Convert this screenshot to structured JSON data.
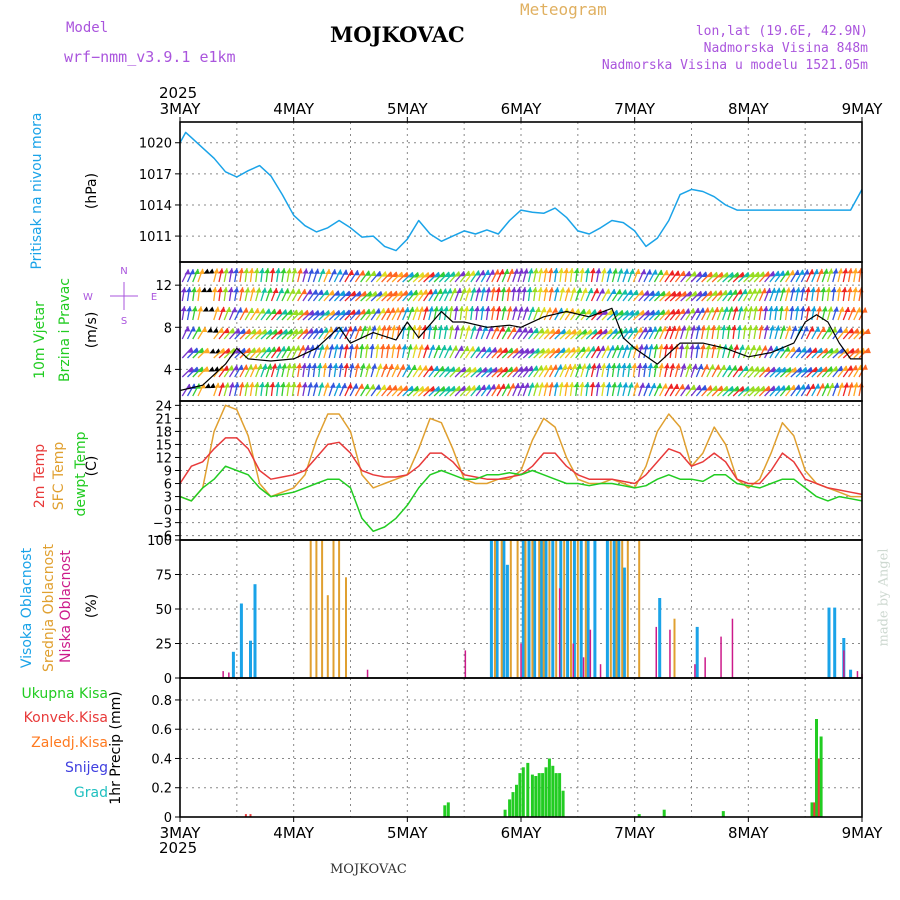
{
  "header": {
    "title": "MOJKOVAC",
    "model_label": "Model",
    "model_name": "wrf−nmm_v3.9.1 e1km",
    "meteogram": "Meteogram",
    "lonlat": "lon,lat (19.6E, 42.9N)",
    "elevation": "Nadmorska Visina 848m",
    "model_elevation": "Nadmorska Visina u modelu 1521.05m",
    "year_top": "2025",
    "year_bottom": "2025",
    "footer": "MOJKOVAC",
    "signature": "made by Angel"
  },
  "colors": {
    "pressure": "#1aa3e8",
    "wind_speed": "#000000",
    "temp2m": "#e83a3a",
    "sfc_temp": "#e0a030",
    "dewpoint": "#22cc22",
    "cloud_high": "#1aa3e8",
    "cloud_mid": "#e0a030",
    "cloud_low": "#cc1a8a",
    "precip_total": "#22cc22",
    "precip_conv": "#e83a3a",
    "precip_frz": "#ff7a20",
    "snow": "#4040e0",
    "graupel": "#20c0c0",
    "violet_text": "#aa55dd"
  },
  "x_axis": {
    "start": "2025-05-03",
    "end": "2025-05-09",
    "ticks": [
      "3MAY",
      "4MAY",
      "5MAY",
      "6MAY",
      "7MAY",
      "8MAY",
      "9MAY"
    ]
  },
  "panels": {
    "pressure": {
      "label": "Pritisak na nivou mora",
      "unit": "(hPa)",
      "ticks": [
        "1020",
        "1017",
        "1014",
        "1011"
      ]
    },
    "wind": {
      "label1": "10m Vjetar",
      "label2": "Brzina i Pravac",
      "unit": "(m/s)",
      "ticks": [
        "12",
        "8",
        "4"
      ],
      "compass": {
        "n": "N",
        "s": "S",
        "e": "E",
        "w": "W"
      }
    },
    "temp": {
      "label1": "2m Temp",
      "label2": "SFC Temp",
      "label3": "dewpt Temp",
      "unit": "(C)",
      "ticks": [
        "24",
        "21",
        "18",
        "15",
        "12",
        "9",
        "6",
        "3",
        "0",
        "−3",
        "−6"
      ]
    },
    "cloud": {
      "label1": "Visoka Oblacnost",
      "label2": "Srednja Oblacnost",
      "label3": "Niska Oblacnost",
      "unit": "(%)",
      "ticks": [
        "100",
        "75",
        "50",
        "25",
        "0"
      ]
    },
    "precip": {
      "legend": [
        "Ukupna Kisa",
        "Konvek.Kisa",
        "Zaledj.Kisa",
        "Snijeg",
        "Grad"
      ],
      "ylabel": "1hr Precip (mm)",
      "ticks": [
        "0.8",
        "0.6",
        "0.4",
        "0.2",
        "0"
      ]
    }
  },
  "chart_data": [
    {
      "type": "line",
      "name": "pressure",
      "ylim": [
        1008.5,
        1022
      ],
      "x_days": [
        0,
        0.05,
        0.1,
        0.2,
        0.3,
        0.4,
        0.5,
        0.6,
        0.7,
        0.8,
        0.9,
        1.0,
        1.1,
        1.2,
        1.3,
        1.4,
        1.5,
        1.6,
        1.7,
        1.8,
        1.9,
        2.0,
        2.1,
        2.2,
        2.3,
        2.4,
        2.5,
        2.6,
        2.7,
        2.8,
        2.9,
        3.0,
        3.1,
        3.2,
        3.3,
        3.4,
        3.5,
        3.6,
        3.7,
        3.8,
        3.9,
        4.0,
        4.1,
        4.2,
        4.3,
        4.4,
        4.5,
        4.6,
        4.7,
        4.8,
        4.9,
        5.0,
        5.1,
        5.2,
        5.3,
        5.4,
        5.5,
        5.6,
        5.7,
        5.8,
        5.9,
        6.0
      ],
      "values": [
        1020,
        1021,
        1020.5,
        1019.5,
        1018.5,
        1017.2,
        1016.7,
        1017.3,
        1017.8,
        1016.8,
        1015,
        1013,
        1012,
        1011.4,
        1011.8,
        1012.5,
        1011.8,
        1010.9,
        1011,
        1010,
        1009.6,
        1010.7,
        1012.5,
        1011.2,
        1010.5,
        1011,
        1011.5,
        1011.2,
        1011.6,
        1011.2,
        1012.5,
        1013.5,
        1013.3,
        1013.2,
        1013.7,
        1012.8,
        1011.5,
        1011.2,
        1011.8,
        1012.5,
        1012.3,
        1011.5,
        1010,
        1010.8,
        1012.5,
        1015,
        1015.5,
        1015.3,
        1014.8,
        1014,
        1013.5,
        1013.5,
        1013.5,
        1013.5,
        1013.5,
        1013.5,
        1013.5,
        1013.5,
        1013.5,
        1013.5,
        1013.5,
        1015.5
      ]
    },
    {
      "type": "line",
      "name": "wind_speed",
      "ylim": [
        1,
        14.2
      ],
      "x_days": [
        0,
        0.2,
        0.4,
        0.5,
        0.6,
        0.8,
        1.0,
        1.2,
        1.4,
        1.5,
        1.7,
        1.9,
        2.0,
        2.1,
        2.3,
        2.4,
        2.5,
        2.7,
        2.9,
        3.0,
        3.2,
        3.4,
        3.6,
        3.8,
        3.9,
        4.0,
        4.2,
        4.4,
        4.6,
        4.8,
        5.0,
        5.2,
        5.4,
        5.5,
        5.6,
        5.7,
        5.8,
        5.9,
        6.0
      ],
      "values": [
        2,
        2.5,
        4.5,
        6,
        5,
        4.8,
        5,
        6,
        8,
        6.5,
        7.5,
        6.8,
        8.5,
        7,
        9.5,
        8.5,
        8.5,
        8,
        8.2,
        8,
        9,
        9.5,
        9,
        9.8,
        7,
        6,
        4.5,
        6.5,
        6.5,
        6,
        5.2,
        5.6,
        6.5,
        8.5,
        9.2,
        8.5,
        6.5,
        5,
        5
      ]
    },
    {
      "type": "line",
      "name": "sfc_temp",
      "ylim": [
        -7,
        25
      ],
      "x_days": [
        0,
        0.1,
        0.2,
        0.3,
        0.4,
        0.5,
        0.6,
        0.7,
        0.8,
        0.9,
        1.0,
        1.1,
        1.2,
        1.3,
        1.4,
        1.5,
        1.6,
        1.7,
        1.8,
        1.9,
        2.0,
        2.1,
        2.2,
        2.3,
        2.4,
        2.5,
        2.6,
        2.7,
        2.8,
        2.9,
        3.0,
        3.1,
        3.2,
        3.3,
        3.4,
        3.5,
        3.6,
        3.7,
        3.8,
        3.9,
        4.0,
        4.1,
        4.2,
        4.3,
        4.4,
        4.5,
        4.6,
        4.7,
        4.8,
        4.9,
        5.0,
        5.1,
        5.2,
        5.3,
        5.4,
        5.5,
        5.6,
        5.7,
        5.8,
        5.9,
        6.0
      ],
      "values": [
        3,
        2,
        5,
        18,
        24,
        23,
        17,
        6,
        3,
        4,
        5,
        8,
        16,
        22,
        22,
        18,
        8,
        5,
        6,
        7,
        8,
        14,
        21,
        20,
        14,
        7,
        6,
        6,
        7,
        7,
        9,
        16,
        21,
        19,
        12,
        7,
        6,
        6,
        7,
        6,
        5,
        10,
        18,
        22,
        19,
        10,
        13,
        19,
        15,
        7,
        5,
        7,
        13,
        20,
        17,
        9,
        6,
        5,
        4,
        3,
        3
      ]
    },
    {
      "type": "line",
      "name": "temp2m",
      "ylim": [
        -7,
        25
      ],
      "x_days": [
        0,
        0.1,
        0.2,
        0.3,
        0.4,
        0.5,
        0.6,
        0.7,
        0.8,
        0.9,
        1.0,
        1.1,
        1.2,
        1.3,
        1.4,
        1.5,
        1.6,
        1.7,
        1.8,
        1.9,
        2.0,
        2.1,
        2.2,
        2.3,
        2.4,
        2.5,
        2.6,
        2.7,
        2.8,
        2.9,
        3.0,
        3.1,
        3.2,
        3.3,
        3.4,
        3.5,
        3.6,
        3.7,
        3.8,
        3.9,
        4.0,
        4.1,
        4.2,
        4.3,
        4.4,
        4.5,
        4.6,
        4.7,
        4.8,
        4.9,
        5.0,
        5.1,
        5.2,
        5.3,
        5.4,
        5.5,
        5.6,
        5.7,
        5.8,
        5.9,
        6.0
      ],
      "values": [
        6,
        10,
        11,
        14,
        16.5,
        16.5,
        14,
        9,
        7,
        7.5,
        8,
        9,
        12,
        15,
        15.5,
        13,
        9,
        8,
        7.5,
        7.5,
        8,
        10,
        13,
        13,
        11,
        8,
        7.5,
        7,
        7,
        7.5,
        8,
        10,
        13,
        13,
        10,
        8,
        7,
        7,
        7,
        6.5,
        6,
        8,
        11,
        14,
        13,
        10,
        11,
        13,
        11,
        7,
        6,
        6,
        9,
        13,
        11,
        7,
        6,
        5,
        4.5,
        4,
        3.5
      ]
    },
    {
      "type": "line",
      "name": "dewpoint",
      "ylim": [
        -7,
        25
      ],
      "x_days": [
        0,
        0.1,
        0.2,
        0.3,
        0.4,
        0.5,
        0.6,
        0.7,
        0.8,
        0.9,
        1.0,
        1.1,
        1.2,
        1.3,
        1.4,
        1.5,
        1.6,
        1.7,
        1.8,
        1.9,
        2.0,
        2.1,
        2.2,
        2.3,
        2.4,
        2.5,
        2.6,
        2.7,
        2.8,
        2.9,
        3.0,
        3.1,
        3.2,
        3.3,
        3.4,
        3.5,
        3.6,
        3.7,
        3.8,
        3.9,
        4.0,
        4.1,
        4.2,
        4.3,
        4.4,
        4.5,
        4.6,
        4.7,
        4.8,
        4.9,
        5.0,
        5.1,
        5.2,
        5.3,
        5.4,
        5.5,
        5.6,
        5.7,
        5.8,
        5.9,
        6.0
      ],
      "values": [
        3,
        2,
        5,
        7,
        10,
        9,
        8,
        5,
        3,
        3.5,
        4,
        5,
        6,
        7,
        7,
        5,
        -2,
        -5,
        -4,
        -2,
        1,
        5,
        8,
        9,
        8,
        7,
        7,
        8,
        8,
        8.5,
        8,
        9,
        8,
        7,
        6,
        6,
        5.5,
        6,
        6,
        5.5,
        5,
        5.5,
        7,
        8,
        7,
        7,
        6.5,
        8,
        8,
        6,
        5.5,
        5,
        6,
        7,
        7,
        5,
        3,
        2,
        3,
        2.5,
        2
      ]
    },
    {
      "type": "bar",
      "name": "cloud_high",
      "ylim": [
        0,
        100
      ],
      "x_days": [
        0.47,
        0.54,
        0.62,
        0.66,
        2.74,
        2.79,
        2.85,
        2.88,
        3.02,
        3.07,
        3.12,
        3.18,
        3.22,
        3.28,
        3.35,
        3.41,
        3.47,
        3.53,
        3.59,
        3.65,
        3.76,
        3.82,
        3.86,
        3.91,
        4.22,
        4.55,
        5.71,
        5.76,
        5.84,
        5.9
      ],
      "values": [
        19,
        54,
        27,
        68,
        100,
        100,
        100,
        82,
        100,
        100,
        100,
        100,
        100,
        100,
        100,
        100,
        100,
        100,
        100,
        100,
        100,
        100,
        100,
        80,
        58,
        37,
        51,
        51,
        29,
        6
      ]
    },
    {
      "type": "bar",
      "name": "cloud_mid",
      "ylim": [
        0,
        100
      ],
      "x_days": [
        1.15,
        1.2,
        1.25,
        1.3,
        1.35,
        1.4,
        1.46,
        2.77,
        2.83,
        2.91,
        2.97,
        3.04,
        3.1,
        3.16,
        3.2,
        3.25,
        3.31,
        3.38,
        3.44,
        3.5,
        3.57,
        3.79,
        3.84,
        3.89,
        3.94,
        4.04,
        4.35
      ],
      "values": [
        100,
        100,
        100,
        60,
        100,
        100,
        73,
        100,
        100,
        100,
        100,
        100,
        100,
        100,
        100,
        100,
        100,
        100,
        100,
        100,
        100,
        100,
        100,
        100,
        100,
        100,
        43
      ]
    },
    {
      "type": "bar",
      "name": "cloud_low",
      "ylim": [
        0,
        100
      ],
      "x_days": [
        0.38,
        0.43,
        1.65,
        2.51,
        3.0,
        3.34,
        3.46,
        3.55,
        3.61,
        3.7,
        4.19,
        4.31,
        4.53,
        4.62,
        4.76,
        4.86,
        5.84,
        5.96,
        6.0
      ],
      "values": [
        5,
        4,
        6,
        20,
        25,
        65,
        25,
        15,
        35,
        10,
        37,
        35,
        10,
        15,
        30,
        43,
        20,
        5,
        3
      ]
    },
    {
      "type": "bar",
      "name": "precip_total",
      "ylim": [
        0,
        0.95
      ],
      "x_days": [
        2.33,
        2.36,
        2.86,
        2.9,
        2.93,
        2.96,
        2.99,
        3.02,
        3.06,
        3.1,
        3.13,
        3.16,
        3.19,
        3.22,
        3.25,
        3.28,
        3.31,
        3.34,
        3.37,
        4.04,
        4.26,
        4.78,
        5.56,
        5.6,
        5.64
      ],
      "values": [
        0.08,
        0.1,
        0.05,
        0.12,
        0.17,
        0.22,
        0.3,
        0.34,
        0.37,
        0.29,
        0.28,
        0.3,
        0.3,
        0.34,
        0.4,
        0.35,
        0.3,
        0.3,
        0.18,
        0.02,
        0.05,
        0.04,
        0.1,
        0.67,
        0.55
      ]
    },
    {
      "type": "bar",
      "name": "precip_conv",
      "ylim": [
        0,
        0.95
      ],
      "x_days": [
        0.58,
        0.62,
        5.58,
        5.62
      ],
      "values": [
        0.02,
        0.02,
        0.1,
        0.4
      ]
    }
  ]
}
